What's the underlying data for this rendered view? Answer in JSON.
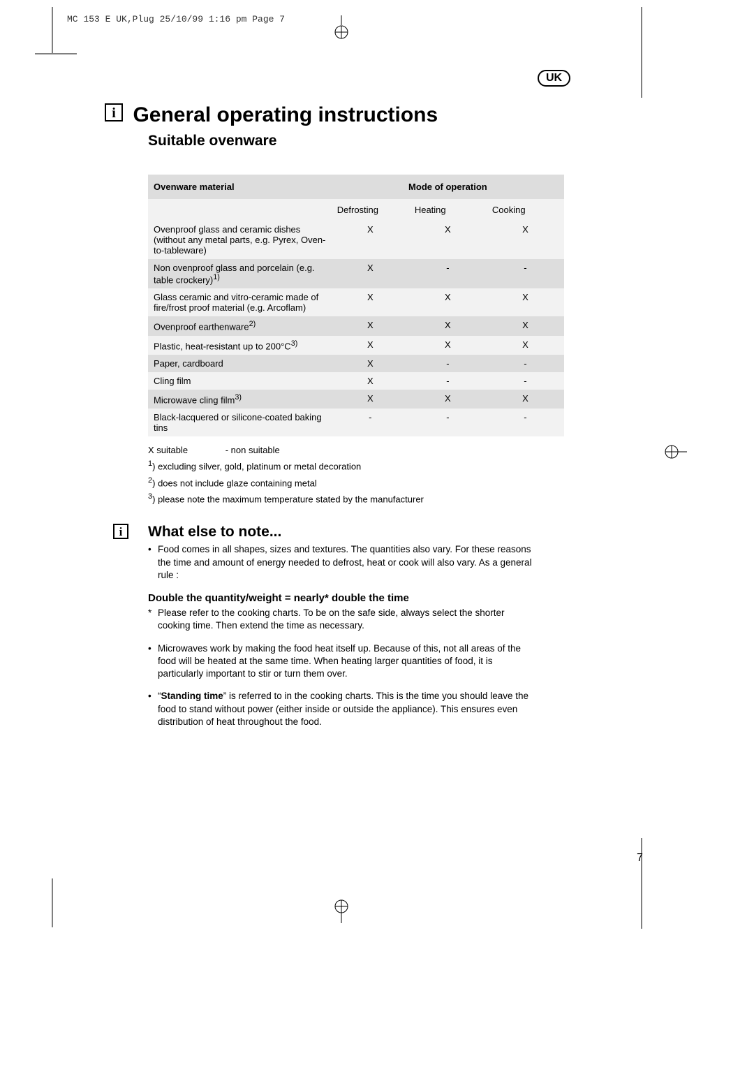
{
  "headerLine": "MC 153 E UK,Plug  25/10/99 1:16 pm  Page 7",
  "ukBadge": "UK",
  "title": "General operating instructions",
  "subtitle": "Suitable ovenware",
  "table": {
    "colMaterial": "Ovenware material",
    "colMode": "Mode of operation",
    "sub1": "Defrosting",
    "sub2": "Heating",
    "sub3": "Cooking",
    "rows": [
      {
        "mat": "Ovenproof glass and ceramic dishes (without any metal parts, e.g. Pyrex, Oven-to-tableware)",
        "d": "X",
        "h": "X",
        "c": "X",
        "shade": "light"
      },
      {
        "mat": "Non ovenproof glass and porcelain (e.g. table crockery)",
        "sup": "1)",
        "d": "X",
        "h": "-",
        "c": "-",
        "shade": "dark"
      },
      {
        "mat": "Glass ceramic and vitro-ceramic made of fire/frost proof material (e.g. Arcoflam)",
        "d": "X",
        "h": "X",
        "c": "X",
        "shade": "light"
      },
      {
        "mat": "Ovenproof earthenware",
        "sup": "2)",
        "d": "X",
        "h": "X",
        "c": "X",
        "shade": "dark"
      },
      {
        "mat": "Plastic, heat-resistant up to 200°C",
        "sup": "3)",
        "d": "X",
        "h": "X",
        "c": "X",
        "shade": "light"
      },
      {
        "mat": "Paper, cardboard",
        "d": "X",
        "h": "-",
        "c": "-",
        "shade": "dark"
      },
      {
        "mat": "Cling film",
        "d": "X",
        "h": "-",
        "c": "-",
        "shade": "light"
      },
      {
        "mat": "Microwave cling film",
        "sup": "3)",
        "d": "X",
        "h": "X",
        "c": "X",
        "shade": "dark"
      },
      {
        "mat": "Black-lacquered or silicone-coated baking tins",
        "d": "-",
        "h": "-",
        "c": "-",
        "shade": "light"
      }
    ]
  },
  "legend": {
    "xs": "X  suitable",
    "ns": "-   non suitable"
  },
  "fn1": ") excluding silver, gold, platinum or metal decoration",
  "fn2": ") does not include glaze containing metal",
  "fn3": ") please note the maximum temperature stated by the manufacturer",
  "section2Title": "What else to note...",
  "bullet1": "Food comes in all shapes, sizes and textures. The quantities also vary. For these reasons the time and amount of energy needed to defrost, heat or cook will also vary. As a general rule :",
  "subhead": "Double the quantity/weight = nearly* double the time",
  "star1": "Please refer to the cooking charts.  To be on the safe side, always select the shorter cooking time. Then extend the time as necessary.",
  "bullet2": "Microwaves work by making the food heat itself up. Because of this, not all areas of the food will be heated at the same time. When heating larger quantities of food, it is particularly important to stir or turn them over.",
  "bullet3a": "“",
  "bullet3bold": "Standing time",
  "bullet3b": "” is referred to in the cooking charts. This is the time you should leave the food to stand without power (either inside or outside the appliance). This ensures even distribution of heat throughout the food.",
  "pageNum": "7"
}
